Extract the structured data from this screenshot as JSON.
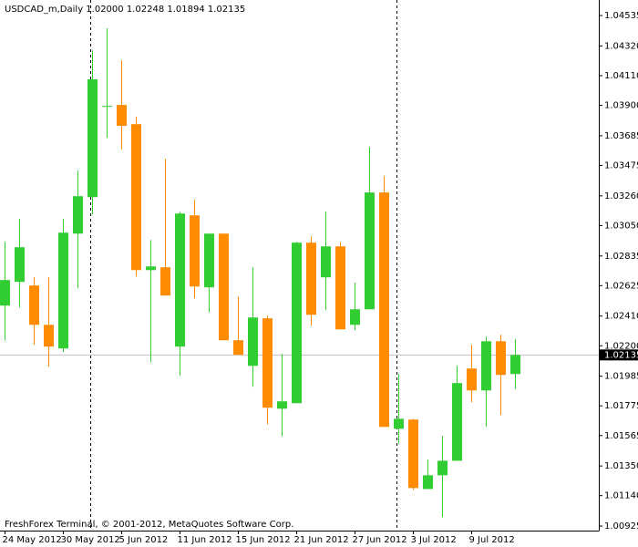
{
  "chart_data": {
    "type": "candlestick",
    "title": "USDCAD_m,Daily  1.02000 1.02248 1.01894 1.02135",
    "footer": "FreshForex Terminal, © 2001-2012, MetaQuotes Software Corp.",
    "categories": [
      "24 May 2012",
      null,
      null,
      null,
      "30 May 2012",
      null,
      null,
      null,
      "5 Jun 2012",
      null,
      null,
      null,
      "11 Jun 2012",
      null,
      null,
      null,
      "15 Jun 2012",
      null,
      null,
      null,
      "21 Jun 2012",
      null,
      null,
      null,
      "27 Jun 2012",
      null,
      null,
      null,
      "3 Jul 2012",
      null,
      null,
      null,
      "9 Jul 2012",
      null,
      null,
      null
    ],
    "open": [
      1.02484,
      1.02652,
      1.02626,
      1.02348,
      1.02181,
      1.02993,
      1.03251,
      1.0389,
      1.03903,
      1.03767,
      1.02735,
      1.02755,
      1.02194,
      1.03122,
      1.02613,
      1.02993,
      1.02239,
      1.02058,
      1.02394,
      1.01755,
      1.01794,
      1.02929,
      1.02684,
      1.02903,
      1.02348,
      1.02458,
      1.03284,
      1.01613,
      1.01678,
      1.01187,
      1.01284,
      1.01387,
      1.02039,
      1.01884,
      1.02232,
      1.02
    ],
    "high": [
      1.02935,
      1.03097,
      1.02684,
      1.02684,
      1.03097,
      1.03439,
      1.0429,
      1.04445,
      1.04219,
      1.03819,
      1.02948,
      1.03522,
      1.03148,
      1.03232,
      1.02993,
      1.02993,
      1.02548,
      1.02755,
      1.02413,
      1.02142,
      1.02935,
      1.02974,
      1.03148,
      1.02935,
      1.02645,
      1.03606,
      1.034,
      1.02,
      1.01684,
      1.01394,
      1.01562,
      1.02058,
      1.02207,
      1.02265,
      1.02278,
      1.02248
    ],
    "low": [
      1.02239,
      1.02471,
      1.02207,
      1.02052,
      1.02155,
      1.02606,
      1.03129,
      1.03671,
      1.03587,
      1.0269,
      1.02084,
      1.02555,
      1.01987,
      1.02536,
      1.02439,
      1.02239,
      1.02136,
      1.0191,
      1.01645,
      1.01562,
      1.01794,
      1.02342,
      1.02452,
      1.02316,
      1.0231,
      1.02458,
      1.01626,
      1.0151,
      1.01181,
      1.01187,
      1.00988,
      1.01387,
      1.018,
      1.01626,
      1.0171,
      1.01894
    ],
    "close": [
      1.02665,
      1.02897,
      1.02348,
      1.02194,
      1.03,
      1.03258,
      1.04084,
      1.03896,
      1.03755,
      1.02735,
      1.02761,
      1.02555,
      1.03135,
      1.02619,
      1.02993,
      1.02239,
      1.02136,
      1.024,
      1.01762,
      1.01807,
      1.02929,
      1.02419,
      1.02903,
      1.02316,
      1.02458,
      1.03284,
      1.01626,
      1.01684,
      1.01194,
      1.01284,
      1.01387,
      1.01936,
      1.01884,
      1.02232,
      1.01994,
      1.02135
    ],
    "up_color": "#32cd32",
    "down_color": "#ff8c00",
    "last_price": {
      "value": 1.02135,
      "label": "1.02135"
    },
    "ylim": [
      1.00893,
      1.04645
    ],
    "yticks": [
      1.04535,
      {
        "value": 1.0432,
        "label": "1.04320"
      },
      {
        "value": 1.0411,
        "label": "1.04110"
      },
      {
        "value": 1.039,
        "label": "1.03900"
      },
      1.03685,
      1.03475,
      {
        "value": 1.0326,
        "label": "1.03260"
      },
      {
        "value": 1.0305,
        "label": "1.03050"
      },
      1.02835,
      1.02625,
      {
        "value": 1.0241,
        "label": "1.02410"
      },
      {
        "value": 1.022,
        "label": "1.02200"
      },
      1.01985,
      1.01775,
      1.01565,
      {
        "value": 1.0135,
        "label": "1.01350"
      },
      {
        "value": 1.0114,
        "label": "1.01140"
      },
      1.00925
    ]
  }
}
